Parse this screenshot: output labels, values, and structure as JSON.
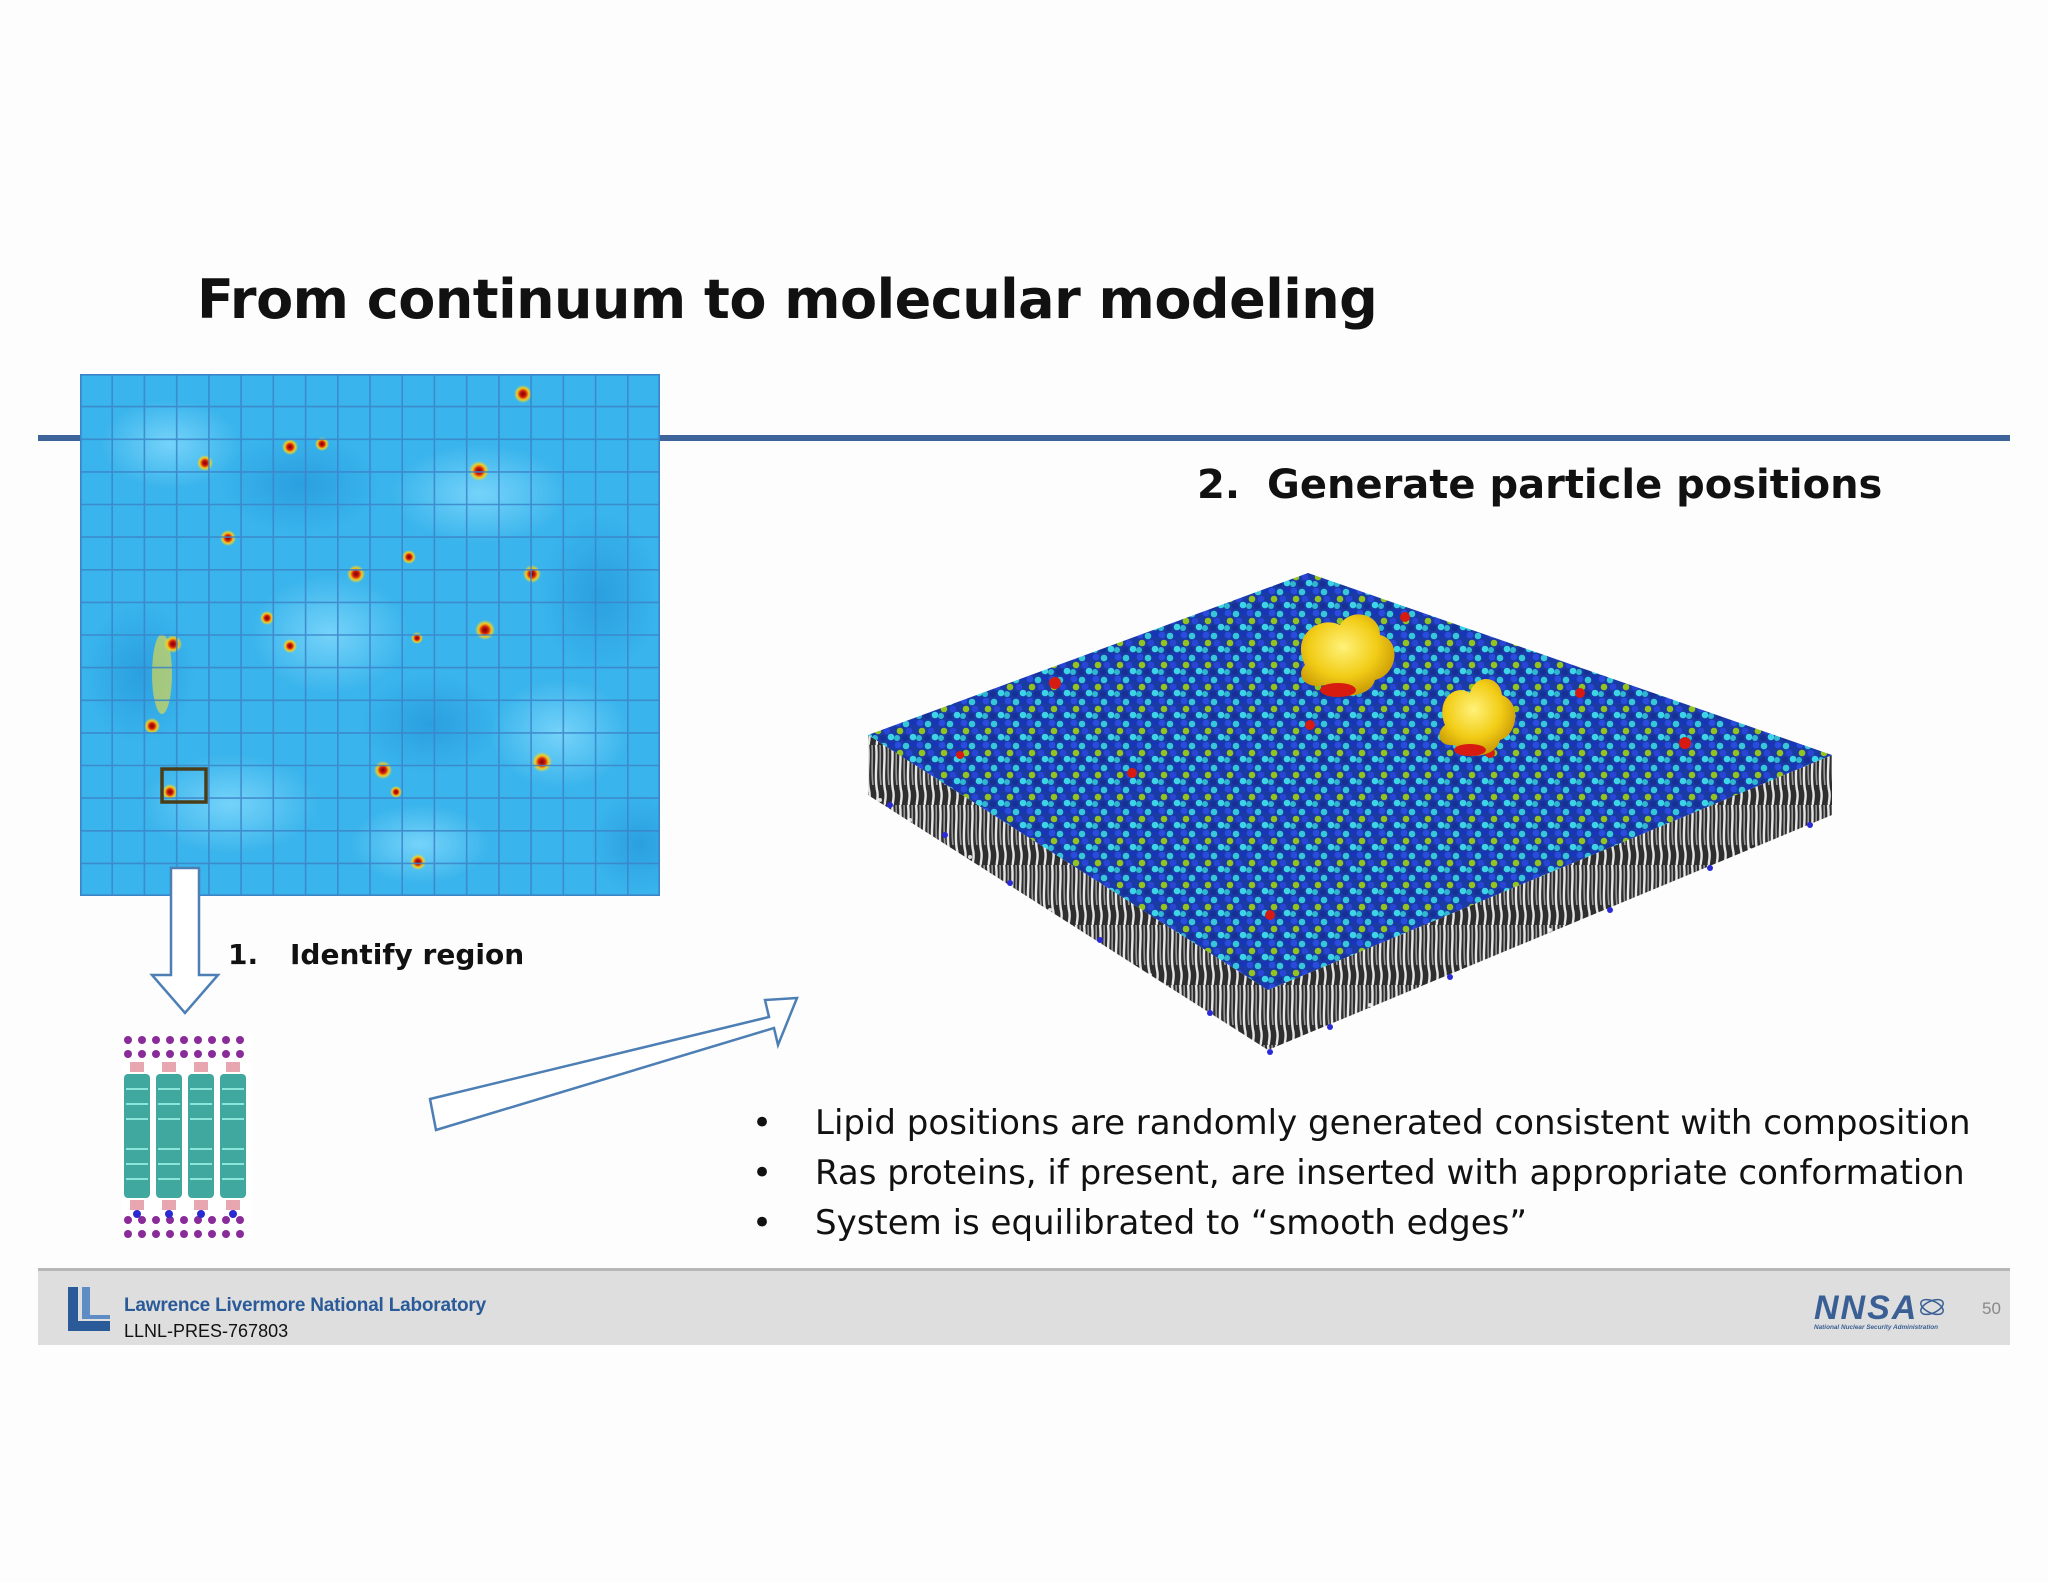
{
  "slide": {
    "title": "From continuum to molecular modeling",
    "step1": {
      "number": "1.",
      "label": "Identify region"
    },
    "step2": {
      "number": "2.",
      "label": "Generate particle positions"
    },
    "bullets": [
      "Lipid positions are randomly generated consistent with composition",
      "Ras proteins, if present, are inserted with appropriate conformation",
      "System is equilibrated to “smooth edges”"
    ],
    "bullet_char": "•"
  },
  "footer": {
    "lab_name": "Lawrence Livermore National Laboratory",
    "doc_id": "LLNL-PRES-767803",
    "agency_logo_text": "NNSA",
    "agency_full_name": "National Nuclear Security Administration",
    "page_number": "50"
  },
  "colors": {
    "title_rule": "#3e6599",
    "lab_blue": "#2a5a98",
    "arrow_stroke": "#4d7fb5",
    "heatmap_base": "#39b4ec",
    "footer_bg": "#dedede"
  }
}
